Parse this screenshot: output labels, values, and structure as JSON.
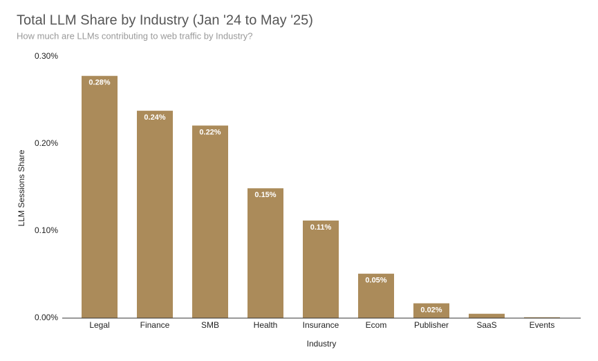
{
  "chart_data": {
    "type": "bar",
    "title": "Total LLM Share by Industry (Jan '24 to May '25)",
    "subtitle": "How much are LLMs contributing to web traffic by Industry?",
    "x_label": "Industry",
    "y_label": "LLM Sessions Share",
    "categories": [
      "Legal",
      "Finance",
      "SMB",
      "Health",
      "Insurance",
      "Ecom",
      "Publisher",
      "SaaS",
      "Events"
    ],
    "values": [
      0.278,
      0.238,
      0.221,
      0.149,
      0.112,
      0.051,
      0.017,
      0.005,
      0.001
    ],
    "value_labels": [
      "0.28%",
      "0.24%",
      "0.22%",
      "0.15%",
      "0.11%",
      "0.05%",
      "0.02%",
      null,
      null
    ],
    "color": "#ab8b5a",
    "ylim": [
      0,
      0.3
    ],
    "yticks": [
      {
        "value": 0,
        "label": "0.00%"
      },
      {
        "value": 0.1,
        "label": "0.10%"
      },
      {
        "value": 0.2,
        "label": "0.20%"
      },
      {
        "value": 0.3,
        "label": "0.30%"
      }
    ],
    "grid": false
  }
}
